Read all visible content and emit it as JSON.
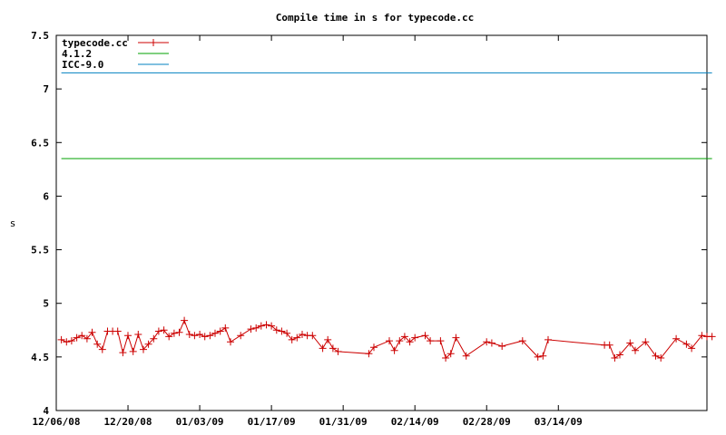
{
  "chart_data": {
    "type": "line",
    "title": "Compile time in s for typecode.cc",
    "ylabel": "s",
    "xlabel": "",
    "ylim": [
      4,
      7.5
    ],
    "xlim": [
      "2008-12-06",
      "2009-04-12"
    ],
    "y_ticks": [
      4,
      4.5,
      5,
      5.5,
      6,
      6.5,
      7,
      7.5
    ],
    "y_tick_labels": [
      "4",
      "4.5",
      "5",
      "5.5",
      "6",
      "6.5",
      "7",
      "7.5"
    ],
    "x_ticks": [
      "2008-12-06",
      "2008-12-20",
      "2009-01-03",
      "2009-01-17",
      "2009-01-31",
      "2009-02-14",
      "2009-02-28",
      "2009-03-14"
    ],
    "x_tick_labels": [
      "12/06/08",
      "12/20/08",
      "01/03/09",
      "01/17/09",
      "01/31/09",
      "02/14/09",
      "02/28/09",
      "03/14/09"
    ],
    "grid": false,
    "legend_position": "top-left",
    "series": [
      {
        "name": "typecode.cc",
        "color": "#cc0000",
        "marker": "plus",
        "style": "linespoints",
        "points": [
          [
            "2008-12-07",
            4.66
          ],
          [
            "2008-12-08",
            4.64
          ],
          [
            "2008-12-09",
            4.65
          ],
          [
            "2008-12-10",
            4.68
          ],
          [
            "2008-12-11",
            4.7
          ],
          [
            "2008-12-12",
            4.67
          ],
          [
            "2008-12-13",
            4.73
          ],
          [
            "2008-12-14",
            4.62
          ],
          [
            "2008-12-15",
            4.57
          ],
          [
            "2008-12-16",
            4.74
          ],
          [
            "2008-12-17",
            4.74
          ],
          [
            "2008-12-18",
            4.74
          ],
          [
            "2008-12-19",
            4.54
          ],
          [
            "2008-12-20",
            4.7
          ],
          [
            "2008-12-21",
            4.55
          ],
          [
            "2008-12-22",
            4.71
          ],
          [
            "2008-12-23",
            4.57
          ],
          [
            "2008-12-24",
            4.62
          ],
          [
            "2008-12-25",
            4.67
          ],
          [
            "2008-12-26",
            4.74
          ],
          [
            "2008-12-27",
            4.75
          ],
          [
            "2008-12-28",
            4.69
          ],
          [
            "2008-12-29",
            4.72
          ],
          [
            "2008-12-30",
            4.73
          ],
          [
            "2008-12-31",
            4.84
          ],
          [
            "2009-01-01",
            4.71
          ],
          [
            "2009-01-02",
            4.7
          ],
          [
            "2009-01-03",
            4.71
          ],
          [
            "2009-01-04",
            4.69
          ],
          [
            "2009-01-05",
            4.7
          ],
          [
            "2009-01-06",
            4.72
          ],
          [
            "2009-01-07",
            4.74
          ],
          [
            "2009-01-08",
            4.77
          ],
          [
            "2009-01-09",
            4.64
          ],
          [
            "2009-01-11",
            4.7
          ],
          [
            "2009-01-13",
            4.76
          ],
          [
            "2009-01-14",
            4.77
          ],
          [
            "2009-01-15",
            4.79
          ],
          [
            "2009-01-16",
            4.8
          ],
          [
            "2009-01-17",
            4.79
          ],
          [
            "2009-01-18",
            4.75
          ],
          [
            "2009-01-19",
            4.74
          ],
          [
            "2009-01-20",
            4.72
          ],
          [
            "2009-01-21",
            4.66
          ],
          [
            "2009-01-22",
            4.68
          ],
          [
            "2009-01-23",
            4.71
          ],
          [
            "2009-01-24",
            4.7
          ],
          [
            "2009-01-25",
            4.7
          ],
          [
            "2009-01-27",
            4.58
          ],
          [
            "2009-01-28",
            4.66
          ],
          [
            "2009-01-29",
            4.58
          ],
          [
            "2009-01-30",
            4.55
          ],
          [
            "2009-02-05",
            4.53
          ],
          [
            "2009-02-06",
            4.59
          ],
          [
            "2009-02-09",
            4.65
          ],
          [
            "2009-02-10",
            4.56
          ],
          [
            "2009-02-11",
            4.65
          ],
          [
            "2009-02-12",
            4.69
          ],
          [
            "2009-02-13",
            4.64
          ],
          [
            "2009-02-14",
            4.68
          ],
          [
            "2009-02-16",
            4.7
          ],
          [
            "2009-02-17",
            4.65
          ],
          [
            "2009-02-19",
            4.65
          ],
          [
            "2009-02-20",
            4.49
          ],
          [
            "2009-02-21",
            4.53
          ],
          [
            "2009-02-22",
            4.68
          ],
          [
            "2009-02-24",
            4.51
          ],
          [
            "2009-02-28",
            4.64
          ],
          [
            "2009-03-01",
            4.63
          ],
          [
            "2009-03-03",
            4.6
          ],
          [
            "2009-03-07",
            4.65
          ],
          [
            "2009-03-10",
            4.5
          ],
          [
            "2009-03-11",
            4.51
          ],
          [
            "2009-03-12",
            4.66
          ],
          [
            "2009-03-23",
            4.61
          ],
          [
            "2009-03-24",
            4.61
          ],
          [
            "2009-03-25",
            4.49
          ],
          [
            "2009-03-26",
            4.52
          ],
          [
            "2009-03-28",
            4.63
          ],
          [
            "2009-03-29",
            4.56
          ],
          [
            "2009-03-31",
            4.64
          ],
          [
            "2009-04-02",
            4.51
          ],
          [
            "2009-04-03",
            4.49
          ],
          [
            "2009-04-06",
            4.67
          ],
          [
            "2009-04-08",
            4.62
          ],
          [
            "2009-04-09",
            4.58
          ],
          [
            "2009-04-11",
            4.7
          ],
          [
            "2009-04-12",
            4.69
          ],
          [
            "2009-04-13",
            4.69
          ]
        ]
      },
      {
        "name": "4.1.2",
        "color": "#00a000",
        "marker": "none",
        "style": "line",
        "points": [
          [
            "2008-12-07",
            6.35
          ],
          [
            "2009-04-13",
            6.35
          ]
        ]
      },
      {
        "name": "ICC-9.0",
        "color": "#0080c0",
        "marker": "none",
        "style": "line",
        "points": [
          [
            "2008-12-07",
            7.15
          ],
          [
            "2009-04-13",
            7.15
          ]
        ]
      }
    ]
  }
}
